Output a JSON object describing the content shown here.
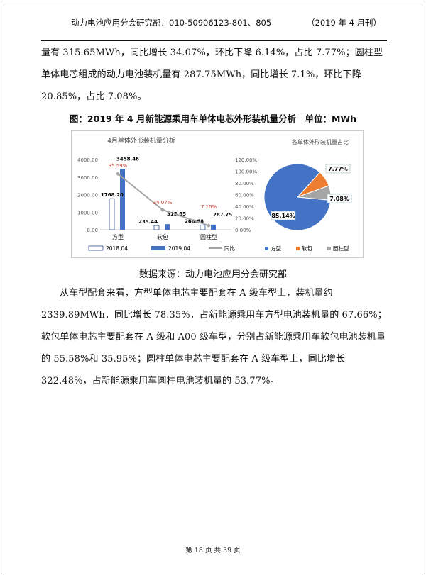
{
  "header": {
    "left": "动力电池应用分会研究部：010-50906123-801、805",
    "right": "（2019 年 4 月刊）"
  },
  "para1": "量有 315.65MWh，同比增长 34.07%，环比下降 6.14%，占比 7.77%；圆柱型单体电芯组成的动力电池装机量有 287.75MWh，同比增长 7.1%，环比下降 20.85%，占比 7.08%。",
  "figure_caption": "图：2019 年 4 月新能源乘用车单体电芯外形装机量分析　单位：MWh",
  "chart_data": [
    {
      "type": "bar",
      "title": "4月单体外形装机量分析",
      "categories": [
        "方型",
        "软包",
        "圆柱型"
      ],
      "series": [
        {
          "name": "2018.04",
          "values": [
            1768.2,
            235.44,
            268.68
          ],
          "labels": [
            "1768.20",
            "235.44",
            "268.68"
          ]
        },
        {
          "name": "2019.04",
          "values": [
            3458.46,
            315.65,
            287.75
          ],
          "labels": [
            "3458.46",
            "315.65",
            "287.75"
          ],
          "color": "#4472c4"
        },
        {
          "name": "同比",
          "type": "line",
          "axis": "right",
          "values": [
            95.59,
            34.07,
            7.1
          ],
          "labels": [
            "95.59%",
            "34.07%",
            "7.10%"
          ],
          "color": "#a5a5a5",
          "label_color": "#c0392b"
        }
      ],
      "yticks": [
        "0.00",
        "1000.00",
        "2000.00",
        "3000.00",
        "4000.00"
      ],
      "ylim": [
        0,
        4000
      ],
      "y2ticks": [
        "0.00%",
        "20.00%",
        "40.00%",
        "60.00%",
        "80.00%",
        "100.00%",
        "120.00%"
      ],
      "y2lim": [
        0,
        120
      ],
      "legend": "bottom"
    },
    {
      "type": "pie",
      "title": "各单体外形装机量占比",
      "categories": [
        "方型",
        "软包",
        "圆柱型"
      ],
      "values": [
        85.14,
        7.77,
        7.08
      ],
      "labels": [
        "85.14%",
        "7.77%",
        "7.08%"
      ],
      "colors": [
        "#4472c4",
        "#ed7d31",
        "#a5a5a5"
      ],
      "legend": "bottom"
    }
  ],
  "source": "数据来源：动力电池应用分会研究部",
  "para2": "从车型配套来看，方型单体电芯主要配套在 A 级车型上，装机量约 2339.89MWh，同比增长 78.35%，占新能源乘用车方型电池装机量的 67.66%；软包单体电芯主要配套在 A 级和 A00 级车型，分别占新能源乘用车软包电池装机量的 55.58%和 35.95%；圆柱单体电芯主要配套在 A 级车型上，同比增长 322.48%，占新能源乘用车圆柱电池装机量的 53.77%。",
  "footer": "第 18 页 共 39 页"
}
